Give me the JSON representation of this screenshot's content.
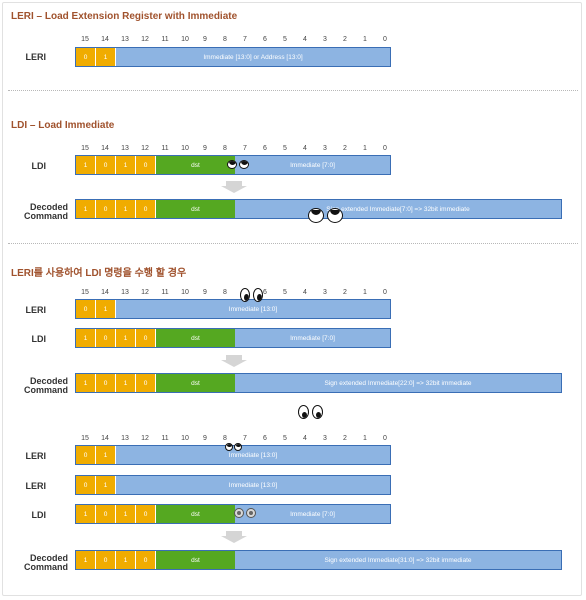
{
  "bit_numbers": [
    "15",
    "14",
    "13",
    "12",
    "11",
    "10",
    "9",
    "8",
    "7",
    "6",
    "5",
    "4",
    "3",
    "2",
    "1",
    "0"
  ],
  "section1": {
    "title": "LERI – Load Extension Register with Immediate",
    "leri": {
      "label": "LERI",
      "bits": [
        "0",
        "1"
      ],
      "immediate": "Immediate [13:0] or Address [13:0]"
    }
  },
  "section2": {
    "title": "LDI – Load Immediate",
    "ldi": {
      "label": "LDI",
      "bits": [
        "1",
        "0",
        "1",
        "0"
      ],
      "dst": "dst",
      "immediate": "Immediate [7:0]"
    },
    "decoded": {
      "label_line1": "Decoded",
      "label_line2": "Command",
      "bits": [
        "1",
        "0",
        "1",
        "0"
      ],
      "dst": "dst",
      "immediate": "Sign extended Immediate[7:0] => 32bit immediate"
    }
  },
  "section3": {
    "title": "LERI를 사용하여 LDI 명령을 수행 할 경우",
    "example1": {
      "leri": {
        "label": "LERI",
        "bits": [
          "0",
          "1"
        ],
        "immediate": "Immediate [13:0]"
      },
      "ldi": {
        "label": "LDI",
        "bits": [
          "1",
          "0",
          "1",
          "0"
        ],
        "dst": "dst",
        "immediate": "Immediate [7:0]"
      },
      "decoded": {
        "label_line1": "Decoded",
        "label_line2": "Command",
        "bits": [
          "1",
          "0",
          "1",
          "0"
        ],
        "dst": "dst",
        "immediate": "Sign extended Immediate[22:0] => 32bit immediate"
      }
    },
    "example2": {
      "leri_a": {
        "label": "LERI",
        "bits": [
          "0",
          "1"
        ],
        "immediate": "Immediate [13:0]"
      },
      "leri_b": {
        "label": "LERI",
        "bits": [
          "0",
          "1"
        ],
        "immediate": "Immediate [13:0]"
      },
      "ldi": {
        "label": "LDI",
        "bits": [
          "1",
          "0",
          "1",
          "0"
        ],
        "dst": "dst",
        "immediate": "Immediate [7:0]"
      },
      "decoded": {
        "label_line1": "Decoded",
        "label_line2": "Command",
        "bits": [
          "1",
          "0",
          "1",
          "0"
        ],
        "dst": "dst",
        "immediate": "Sign extended Immediate[31:0] => 32bit immediate"
      }
    }
  },
  "colors": {
    "opcode": "#f0ac00",
    "dst": "#55a821",
    "immediate": "#8db4e2",
    "border": "#3a6eb5",
    "title": "#a0522d"
  },
  "icons": [
    "eyes-icon"
  ]
}
